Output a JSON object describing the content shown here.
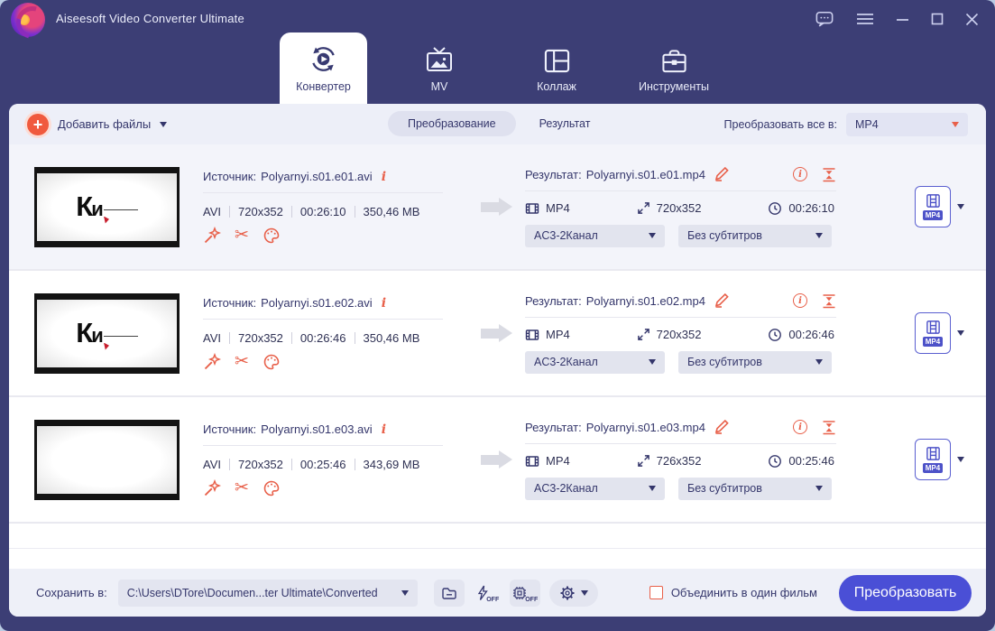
{
  "window": {
    "title": "Aiseesoft Video Converter Ultimate"
  },
  "tabs": [
    {
      "label": "Конвертер",
      "active": true
    },
    {
      "label": "MV",
      "active": false
    },
    {
      "label": "Коллаж",
      "active": false
    },
    {
      "label": "Инструменты",
      "active": false
    }
  ],
  "toolbar": {
    "add_files_label": "Добавить файлы",
    "view_tabs": [
      {
        "label": "Преобразование",
        "active": true
      },
      {
        "label": "Результат",
        "active": false
      }
    ],
    "convert_all_label": "Преобразовать все в:",
    "convert_all_value": "MP4"
  },
  "files": [
    {
      "source_prefix": "Источник:",
      "source_file": "Polyarnyi.s01.e01.avi",
      "in_format": "AVI",
      "in_resolution": "720x352",
      "in_duration": "00:26:10",
      "in_size": "350,46 MB",
      "result_prefix": "Результат:",
      "result_file": "Polyarnyi.s01.e01.mp4",
      "out_format": "MP4",
      "out_resolution": "720x352",
      "out_duration": "00:26:10",
      "audio_track": "AC3-2Канал",
      "subtitle_track": "Без субтитров",
      "profile_badge": "MP4",
      "thumb_text": "Ки"
    },
    {
      "source_prefix": "Источник:",
      "source_file": "Polyarnyi.s01.e02.avi",
      "in_format": "AVI",
      "in_resolution": "720x352",
      "in_duration": "00:26:46",
      "in_size": "350,46 MB",
      "result_prefix": "Результат:",
      "result_file": "Polyarnyi.s01.e02.mp4",
      "out_format": "MP4",
      "out_resolution": "720x352",
      "out_duration": "00:26:46",
      "audio_track": "AC3-2Канал",
      "subtitle_track": "Без субтитров",
      "profile_badge": "MP4",
      "thumb_text": "Ки"
    },
    {
      "source_prefix": "Источник:",
      "source_file": "Polyarnyi.s01.e03.avi",
      "in_format": "AVI",
      "in_resolution": "720x352",
      "in_duration": "00:25:46",
      "in_size": "343,69 MB",
      "result_prefix": "Результат:",
      "result_file": "Polyarnyi.s01.e03.mp4",
      "out_format": "MP4",
      "out_resolution": "726x352",
      "out_duration": "00:25:46",
      "audio_track": "AC3-2Канал",
      "subtitle_track": "Без субтитров",
      "profile_badge": "MP4",
      "thumb_text": ""
    }
  ],
  "footer": {
    "save_label": "Сохранить в:",
    "save_path": "C:\\Users\\DTore\\Documen...ter Ultimate\\Converted",
    "merge_label": "Объединить в один фильм",
    "merge_checked": false,
    "convert_button": "Преобразовать"
  },
  "icons": {
    "scissors": "✂",
    "info_letter": "i"
  },
  "colors": {
    "header": "#3c3e75",
    "accent_orange": "#e8604a",
    "primary_button": "#4a4fd6"
  }
}
